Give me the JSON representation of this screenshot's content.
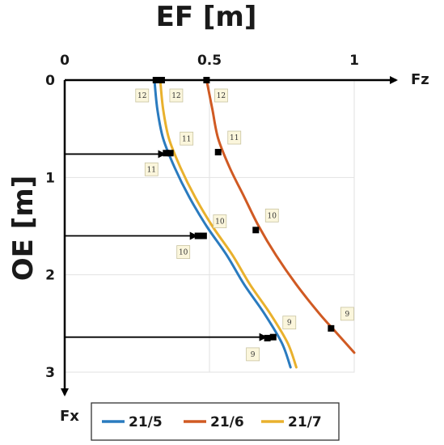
{
  "chart_data": {
    "type": "line",
    "title": "EF [m]",
    "xlabel": "Fz",
    "ylabel": "OE [m]",
    "y_axis_end_label": "Fx",
    "x_axis_title": "EF [m]",
    "y_axis_title": "OE [m]",
    "xlim": [
      0,
      1
    ],
    "ylim": [
      0,
      3
    ],
    "y_inverted": true,
    "x_ticks": [
      "0",
      "0.5",
      "1"
    ],
    "y_ticks": [
      "0",
      "1",
      "2",
      "3"
    ],
    "grid": true,
    "legend_position": "bottom",
    "series": [
      {
        "name": "21/5",
        "color": "#2a7bbf",
        "x": [
          0.31,
          0.32,
          0.34,
          0.38,
          0.43,
          0.49,
          0.56,
          0.62,
          0.69,
          0.75,
          0.78
        ],
        "y": [
          0,
          0.3,
          0.6,
          0.9,
          1.2,
          1.5,
          1.8,
          2.1,
          2.4,
          2.7,
          2.95
        ]
      },
      {
        "name": "21/6",
        "color": "#d05a23",
        "x": [
          0.49,
          0.51,
          0.53,
          0.57,
          0.62,
          0.67,
          0.73,
          0.8,
          0.88,
          0.94,
          1.0
        ],
        "y": [
          0,
          0.3,
          0.6,
          0.9,
          1.2,
          1.5,
          1.8,
          2.1,
          2.4,
          2.6,
          2.8
        ]
      },
      {
        "name": "21/7",
        "color": "#e9b12d",
        "x": [
          0.33,
          0.34,
          0.36,
          0.4,
          0.45,
          0.51,
          0.58,
          0.64,
          0.71,
          0.77,
          0.8
        ],
        "y": [
          0,
          0.3,
          0.6,
          0.9,
          1.2,
          1.5,
          1.8,
          2.1,
          2.4,
          2.7,
          2.95
        ]
      }
    ],
    "markers": [
      {
        "series": "21/5",
        "x": 0.315,
        "y": 0,
        "label": "12",
        "label_side": "left"
      },
      {
        "series": "21/7",
        "x": 0.335,
        "y": 0,
        "label": "12",
        "label_side": "right"
      },
      {
        "series": "21/6",
        "x": 0.49,
        "y": 0,
        "label": "12",
        "label_side": "right"
      },
      {
        "series": "21/5",
        "x": 0.35,
        "y": 0.75,
        "label": "11",
        "label_side": "below-left"
      },
      {
        "series": "21/7",
        "x": 0.365,
        "y": 0.75,
        "label": "11",
        "label_side": "above-right"
      },
      {
        "series": "21/6",
        "x": 0.53,
        "y": 0.74,
        "label": "11",
        "label_side": "above-right"
      },
      {
        "series": "21/5",
        "x": 0.46,
        "y": 1.6,
        "label": "10",
        "label_side": "below-left"
      },
      {
        "series": "21/7",
        "x": 0.48,
        "y": 1.6,
        "label": "10",
        "label_side": "above-right"
      },
      {
        "series": "21/6",
        "x": 0.66,
        "y": 1.54,
        "label": "10",
        "label_side": "above-right"
      },
      {
        "series": "21/5",
        "x": 0.7,
        "y": 2.65,
        "label": "9",
        "label_side": "below-left"
      },
      {
        "series": "21/7",
        "x": 0.72,
        "y": 2.64,
        "label": "9",
        "label_side": "above-right"
      },
      {
        "series": "21/6",
        "x": 0.92,
        "y": 2.55,
        "label": "9",
        "label_side": "above-right"
      }
    ],
    "arrows": [
      {
        "y": 0.76,
        "x_end": 0.35
      },
      {
        "y": 1.6,
        "x_end": 0.46
      },
      {
        "y": 2.64,
        "x_end": 0.7
      }
    ]
  }
}
